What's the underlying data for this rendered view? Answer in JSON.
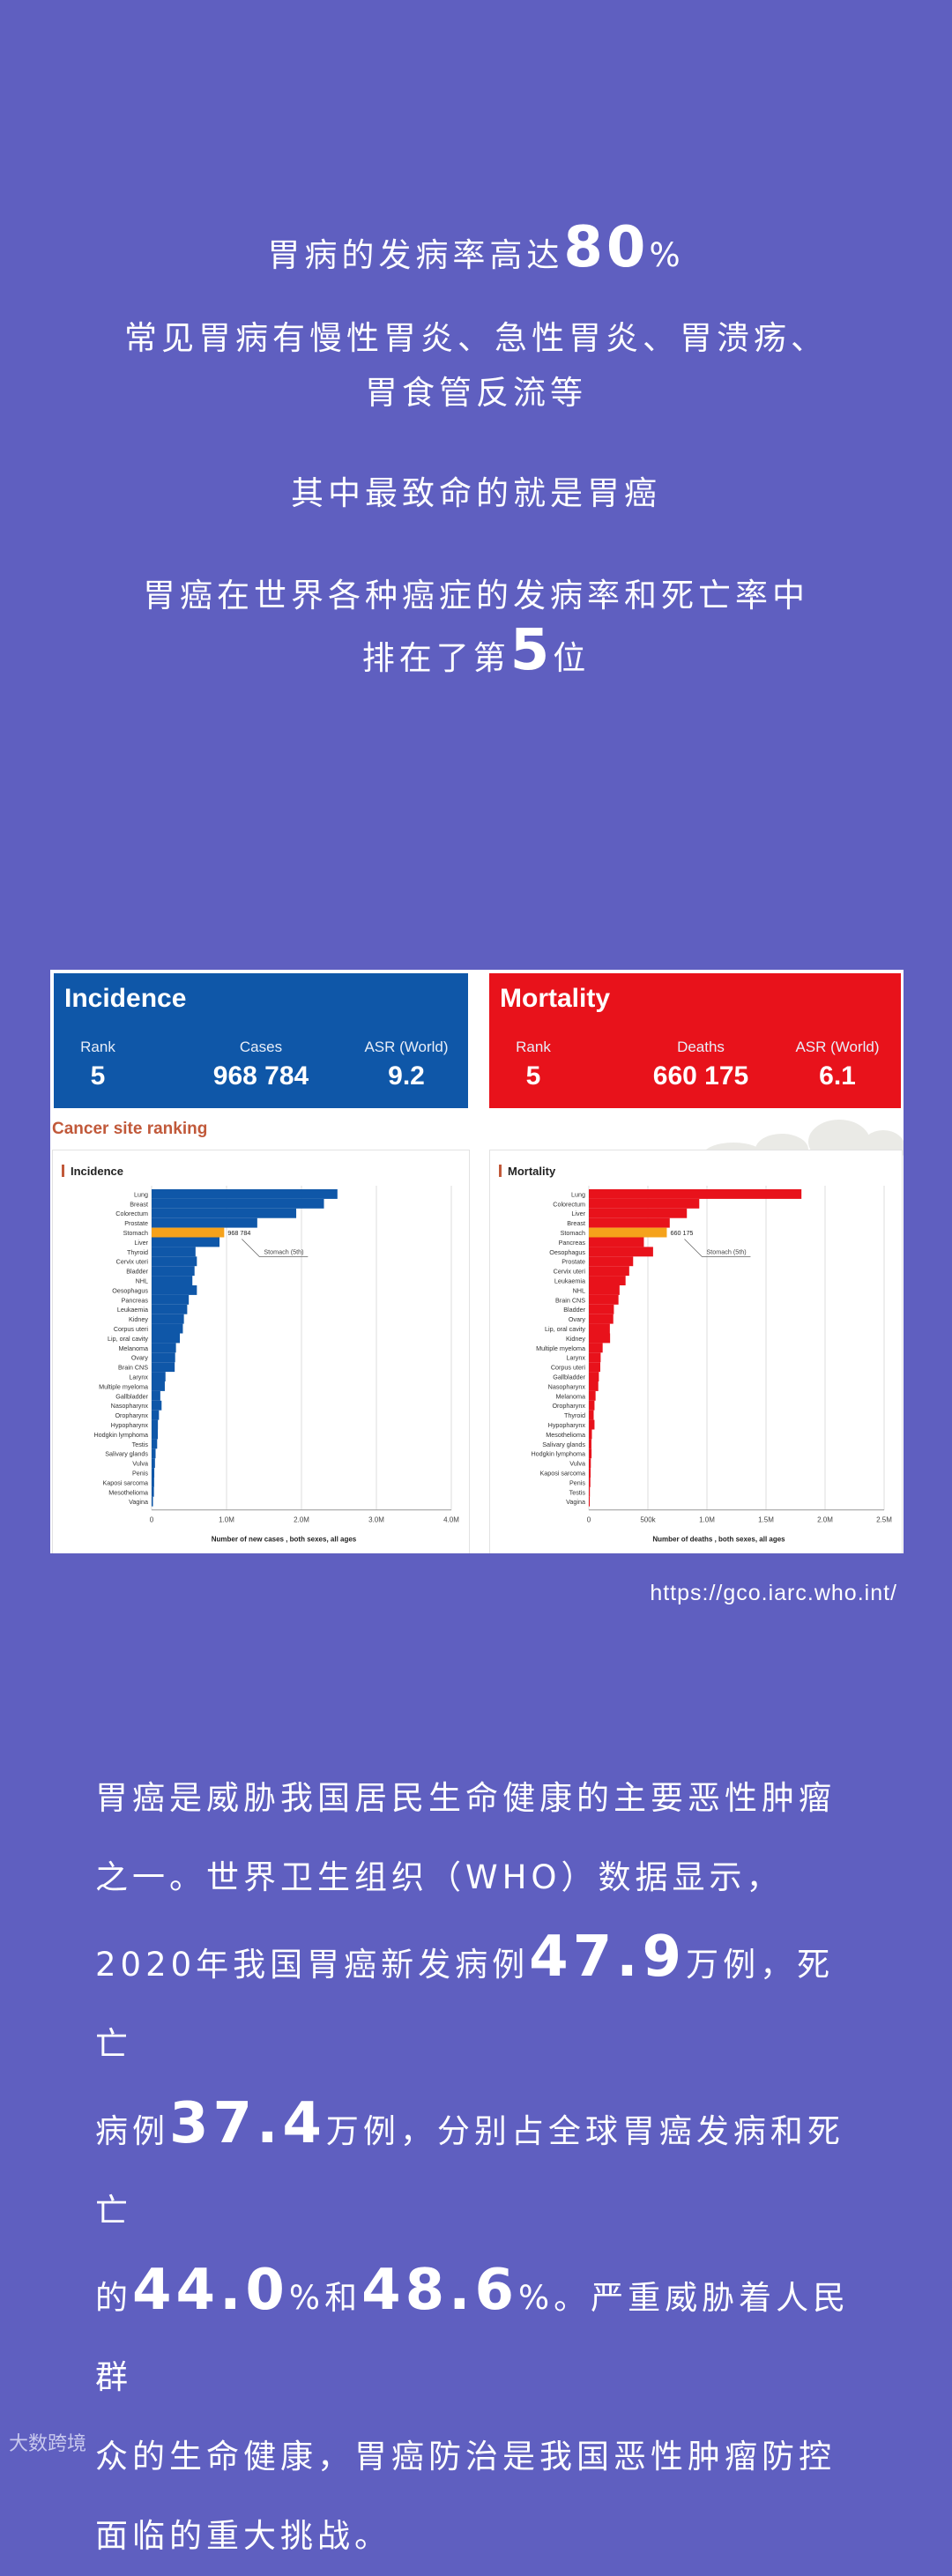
{
  "intro": {
    "line1_pre": "胃病的发病率高达",
    "line1_num": "80",
    "line1_suffix": "%",
    "line2": "常见胃病有慢性胃炎、急性胃炎、胃溃疡、",
    "line3": "胃食管反流等",
    "line4": "其中最致命的就是胃癌",
    "line5": "胃癌在世界各种癌症的发病率和死亡率中",
    "line6_pre": "排在了第",
    "line6_num": "5",
    "line6_suffix": "位"
  },
  "cards": {
    "incidence": {
      "title": "Incidence",
      "rank_label": "Rank",
      "rank": "5",
      "cases_label": "Cases",
      "cases": "968 784",
      "asr_label": "ASR (World)",
      "asr": "9.2"
    },
    "mortality": {
      "title": "Mortality",
      "rank_label": "Rank",
      "rank": "5",
      "deaths_label": "Deaths",
      "deaths": "660 175",
      "asr_label": "ASR (World)",
      "asr": "6.1"
    }
  },
  "site_ranking_title": "Cancer site ranking",
  "colors": {
    "incidence": "#0f57a8",
    "mortality": "#e8121b",
    "highlight": "#f5a21b",
    "background": "#5f5fc0"
  },
  "chart_data": [
    {
      "type": "bar",
      "orientation": "horizontal",
      "title": "Incidence",
      "xlabel": "Number of new cases , both sexes, all ages",
      "xlim": [
        0,
        4000000
      ],
      "xticks": [
        "0",
        "1.0M",
        "2.0M",
        "3.0M",
        "4.0M"
      ],
      "highlight": "Stomach",
      "highlight_label": "968 784",
      "annotation": "Stomach (5th)",
      "categories": [
        "Lung",
        "Breast",
        "Colorectum",
        "Prostate",
        "Stomach",
        "Liver",
        "Thyroid",
        "Cervix uteri",
        "Bladder",
        "NHL",
        "Oesophagus",
        "Pancreas",
        "Leukaemia",
        "Kidney",
        "Corpus uteri",
        "Lip, oral cavity",
        "Melanoma",
        "Ovary",
        "Brain CNS",
        "Larynx",
        "Multiple myeloma",
        "Gallbladder",
        "Nasopharynx",
        "Oropharynx",
        "Hypopharynx",
        "Hodgkin lymphoma",
        "Testis",
        "Salivary glands",
        "Vulva",
        "Penis",
        "Kaposi sarcoma",
        "Mesothelioma",
        "Vagina"
      ],
      "values": [
        2480000,
        2300000,
        1930000,
        1410000,
        968784,
        906000,
        586000,
        604000,
        573000,
        544000,
        604000,
        496000,
        475000,
        431000,
        417000,
        377000,
        325000,
        314000,
        308000,
        185000,
        176000,
        116000,
        133000,
        98000,
        84000,
        83000,
        74000,
        53000,
        45000,
        36000,
        34000,
        31000,
        18000
      ]
    },
    {
      "type": "bar",
      "orientation": "horizontal",
      "title": "Mortality",
      "xlabel": "Number of deaths , both sexes, all ages",
      "xlim": [
        0,
        2500000
      ],
      "xticks": [
        "0",
        "500k",
        "1.0M",
        "1.5M",
        "2.0M",
        "2.5M"
      ],
      "highlight": "Stomach",
      "highlight_label": "660 175",
      "annotation": "Stomach (5th)",
      "categories": [
        "Lung",
        "Colorectum",
        "Liver",
        "Breast",
        "Stomach",
        "Pancreas",
        "Oesophagus",
        "Prostate",
        "Cervix uteri",
        "Leukaemia",
        "NHL",
        "Brain CNS",
        "Bladder",
        "Ovary",
        "Lip, oral cavity",
        "Kidney",
        "Multiple myeloma",
        "Larynx",
        "Corpus uteri",
        "Gallbladder",
        "Nasopharynx",
        "Melanoma",
        "Oropharynx",
        "Thyroid",
        "Hypopharynx",
        "Mesothelioma",
        "Salivary glands",
        "Hodgkin lymphoma",
        "Vulva",
        "Kaposi sarcoma",
        "Penis",
        "Testis",
        "Vagina"
      ],
      "values": [
        1800000,
        935000,
        830000,
        685000,
        660175,
        466000,
        544000,
        375000,
        342000,
        311000,
        260000,
        251000,
        212000,
        207000,
        178000,
        180000,
        117000,
        100000,
        97000,
        85000,
        80000,
        57000,
        48000,
        41000,
        48000,
        26000,
        22000,
        23000,
        17000,
        15000,
        13000,
        9000,
        8000
      ]
    }
  ],
  "source_url": "https://gco.iarc.who.int/",
  "body": {
    "line1": "胃癌是威胁我国居民生命健康的主要恶性肿瘤",
    "line2": "之一。世界卫生组织（WHO）数据显示，",
    "line3_pre": "2020年我国胃癌新发病例",
    "line3_num": "47.9",
    "line3_post": "万例，死亡",
    "line4_pre": "病例",
    "line4_num": "37.4",
    "line4_post": "万例，分别占全球胃癌发病和死亡",
    "line5_pre": "的",
    "line5_num1": "44.0",
    "line5_mid": "%和",
    "line5_num2": "48.6",
    "line5_post": "%。严重威胁着人民群",
    "line6": "众的生命健康，胃癌防治是我国恶性肿瘤防控",
    "line7": "面临的重大挑战。"
  },
  "watermark": "大数跨境"
}
